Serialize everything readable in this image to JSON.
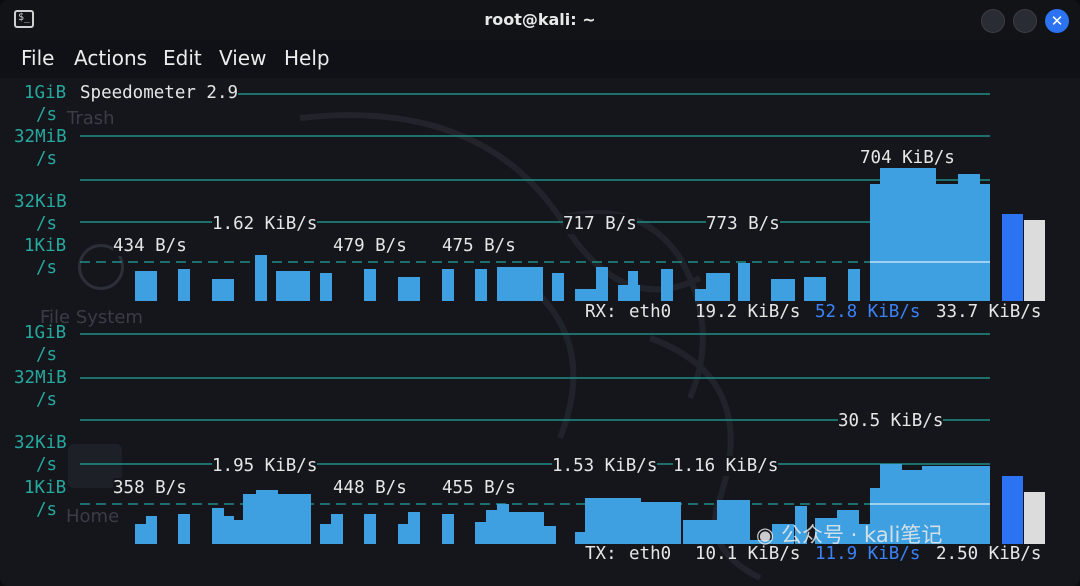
{
  "window": {
    "title": "root@kali: ~"
  },
  "menu": [
    "File",
    "Actions",
    "Edit",
    "View",
    "Help"
  ],
  "desktop_icons": [
    "Trash",
    "File System",
    "Home"
  ],
  "app": {
    "title": "Speedometer 2.9"
  },
  "axis_labels": [
    "1GiB",
    "/s",
    "32MiB",
    "/s",
    "32KiB",
    "/s",
    "1KiB",
    "/s"
  ],
  "colors": {
    "accent": "#2b73f3",
    "bar": "#3ea0e0",
    "grid": "#1e8f86",
    "axis_text": "#27a89e",
    "bar_grey": "#dcdcdc"
  },
  "rx": {
    "peak_labels": [
      "704 KiB/s",
      "1.62 KiB/s",
      "717 B/s",
      "773 B/s",
      "434 B/s",
      "479 B/s",
      "475 B/s"
    ],
    "status": {
      "dir": "RX:",
      "iface": "eth0",
      "total": "19.2 KiB/s",
      "current": "52.8 KiB/s",
      "average": "33.7 KiB/s"
    }
  },
  "tx": {
    "peak_labels": [
      "30.5 KiB/s",
      "1.95 KiB/s",
      "1.53 KiB/s",
      "1.16 KiB/s",
      "358 B/s",
      "448 B/s",
      "455 B/s"
    ],
    "status": {
      "dir": "TX:",
      "iface": "eth0",
      "total": "10.1 KiB/s",
      "current": "11.9 KiB/s",
      "average": "2.50 KiB/s"
    }
  },
  "watermark": "公众号 · kali笔记"
}
